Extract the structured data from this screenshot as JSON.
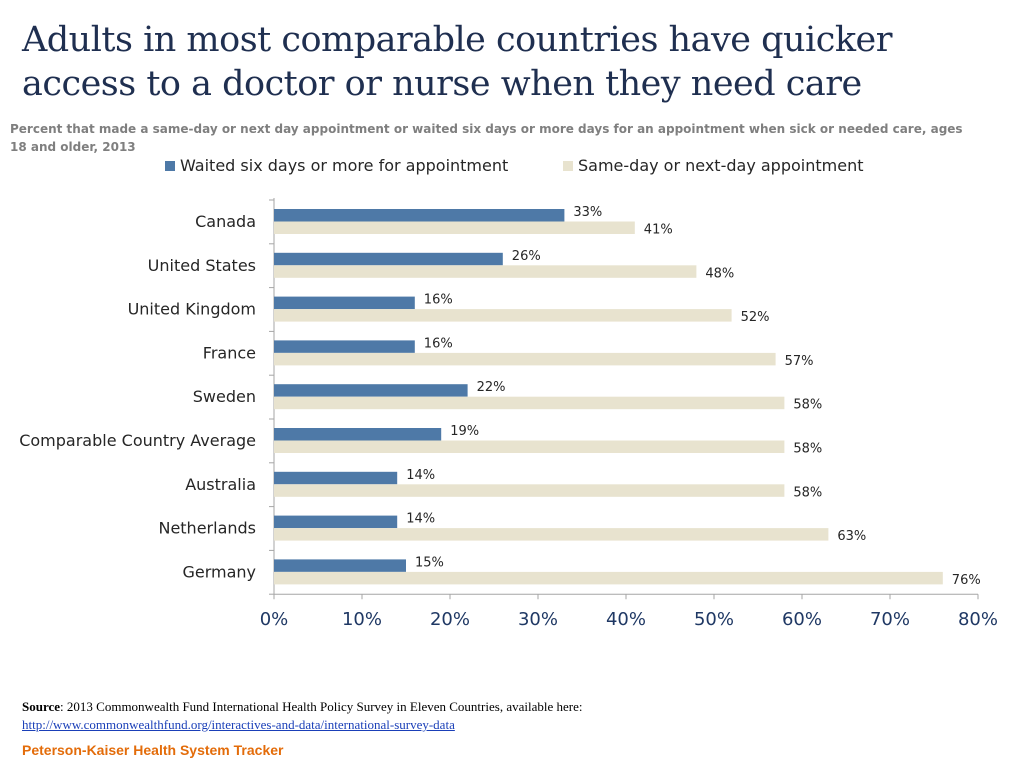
{
  "chart_data": {
    "type": "bar",
    "orientation": "horizontal",
    "title": "Adults in most comparable countries have quicker access to a doctor or nurse when they need care",
    "subtitle": "Percent that  made a same-day or next day appointment or waited six days or more days for an appointment when sick or needed care, ages 18 and older, 2013",
    "categories": [
      "Canada",
      "United States",
      "United Kingdom",
      "France",
      "Sweden",
      "Comparable Country Average",
      "Australia",
      "Netherlands",
      "Germany"
    ],
    "series": [
      {
        "name": "Waited six days or more for appointment",
        "color": "#4e79a7",
        "values": [
          33,
          26,
          16,
          16,
          22,
          19,
          14,
          14,
          15
        ]
      },
      {
        "name": "Same-day or next-day appointment",
        "color": "#e8e3cf",
        "values": [
          41,
          48,
          52,
          57,
          58,
          58,
          58,
          63,
          76
        ]
      }
    ],
    "xlim": [
      0,
      80
    ],
    "xticks": [
      "0%",
      "10%",
      "20%",
      "30%",
      "40%",
      "50%",
      "60%",
      "70%",
      "80%"
    ],
    "value_suffix": "%",
    "legend_position": "top",
    "grid": false
  },
  "footer": {
    "source_label": "Source",
    "source_text": ":  2013 Commonwealth Fund International Health Policy Survey in Eleven Countries, available here:",
    "source_link": "http://www.commonwealthfund.org/interactives-and-data/international-survey-data",
    "brand": "Peterson-Kaiser Health System Tracker"
  }
}
